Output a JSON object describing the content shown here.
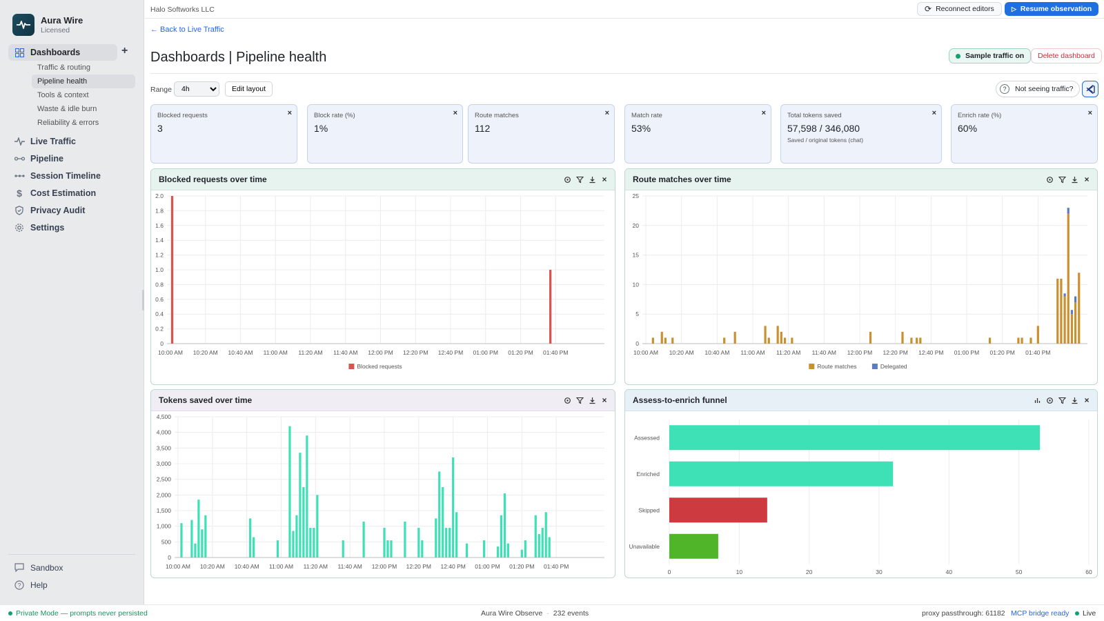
{
  "app": {
    "name": "Aura Wire",
    "license": "Licensed",
    "org": "Halo Softworks LLC"
  },
  "sidebar": {
    "dashboards_label": "Dashboards",
    "subitems": [
      "Traffic & routing",
      "Pipeline health",
      "Tools & context",
      "Waste & idle burn",
      "Reliability & errors"
    ],
    "active_subitem": "Pipeline health",
    "items": [
      {
        "label": "Live Traffic",
        "icon": "activity-icon"
      },
      {
        "label": "Pipeline",
        "icon": "pipeline-icon"
      },
      {
        "label": "Session Timeline",
        "icon": "timeline-icon"
      },
      {
        "label": "Cost Estimation",
        "icon": "dollar-icon"
      },
      {
        "label": "Privacy Audit",
        "icon": "shield-icon"
      },
      {
        "label": "Settings",
        "icon": "gear-icon"
      }
    ],
    "bottom": [
      {
        "label": "Sandbox",
        "icon": "chat-icon"
      },
      {
        "label": "Help",
        "icon": "help-icon"
      }
    ]
  },
  "topbar": {
    "reconnect_label": "Reconnect editors",
    "resume_label": "Resume observation"
  },
  "header": {
    "back_label": "← Back to Live Traffic",
    "title": "Dashboards | Pipeline health",
    "sample_label": "Sample traffic on",
    "delete_label": "Delete dashboard",
    "range_label": "Range",
    "range_value": "4h",
    "edit_label": "Edit layout",
    "not_seeing_label": "Not seeing traffic?"
  },
  "cards": [
    {
      "label": "Blocked requests",
      "value": "3",
      "sub": ""
    },
    {
      "label": "Block rate (%)",
      "value": "1%",
      "sub": ""
    },
    {
      "label": "Route matches",
      "value": "112",
      "sub": ""
    },
    {
      "label": "Match rate",
      "value": "53%",
      "sub": ""
    },
    {
      "label": "Total tokens saved",
      "value": "57,598 / 346,080",
      "sub": "Saved / original tokens (chat)"
    },
    {
      "label": "Enrich rate (%)",
      "value": "60%",
      "sub": ""
    }
  ],
  "panels": {
    "blocked": {
      "title": "Blocked requests over time"
    },
    "routes": {
      "title": "Route matches over time"
    },
    "tokens": {
      "title": "Tokens saved over time"
    },
    "funnel": {
      "title": "Assess-to-enrich funnel"
    }
  },
  "footer": {
    "private": "Private Mode — prompts never persisted",
    "product": "Aura Wire Observe",
    "events": "232 events",
    "proxy": "proxy passthrough: 61182",
    "mcp": "MCP bridge ready",
    "live": "Live"
  },
  "chart_data": [
    {
      "type": "bar",
      "title": "Blocked requests over time",
      "xlabel": "",
      "ylabel": "",
      "ylim": [
        0,
        2.0
      ],
      "yticks": [
        "0",
        "0.2",
        "0.4",
        "0.6",
        "0.8",
        "1.0",
        "1.2",
        "1.4",
        "1.6",
        "1.8",
        "2.0"
      ],
      "xticks": [
        "10:00 AM",
        "10:20 AM",
        "10:40 AM",
        "11:00 AM",
        "11:20 AM",
        "11:40 AM",
        "12:00 PM",
        "12:20 PM",
        "12:40 PM",
        "01:00 PM",
        "01:20 PM",
        "01:40 PM"
      ],
      "series": [
        {
          "name": "Blocked requests",
          "color": "#d9534f",
          "points": [
            {
              "t": 1,
              "v": 2
            },
            {
              "t": 217,
              "v": 1
            }
          ]
        }
      ],
      "legend": "bottom"
    },
    {
      "type": "bar",
      "title": "Route matches over time",
      "xlabel": "",
      "ylabel": "",
      "ylim": [
        0,
        25
      ],
      "yticks": [
        "0",
        "5",
        "10",
        "15",
        "20",
        "25"
      ],
      "xticks": [
        "10:00 AM",
        "10:20 AM",
        "10:40 AM",
        "11:00 AM",
        "11:20 AM",
        "11:40 AM",
        "12:00 PM",
        "12:20 PM",
        "12:40 PM",
        "01:00 PM",
        "01:20 PM",
        "01:40 PM"
      ],
      "stacked": true,
      "series": [
        {
          "name": "Route matches",
          "color": "#c9902f",
          "points": [
            {
              "t": 4,
              "v": 1
            },
            {
              "t": 9,
              "v": 2
            },
            {
              "t": 11,
              "v": 1
            },
            {
              "t": 15,
              "v": 1
            },
            {
              "t": 44,
              "v": 1
            },
            {
              "t": 50,
              "v": 2
            },
            {
              "t": 67,
              "v": 3
            },
            {
              "t": 69,
              "v": 1
            },
            {
              "t": 74,
              "v": 3
            },
            {
              "t": 76,
              "v": 2
            },
            {
              "t": 78,
              "v": 1
            },
            {
              "t": 82,
              "v": 1
            },
            {
              "t": 126,
              "v": 2
            },
            {
              "t": 144,
              "v": 2
            },
            {
              "t": 149,
              "v": 1
            },
            {
              "t": 152,
              "v": 1
            },
            {
              "t": 154,
              "v": 1
            },
            {
              "t": 193,
              "v": 1
            },
            {
              "t": 209,
              "v": 1
            },
            {
              "t": 211,
              "v": 1
            },
            {
              "t": 216,
              "v": 1
            },
            {
              "t": 220,
              "v": 3
            },
            {
              "t": 231,
              "v": 11
            },
            {
              "t": 233,
              "v": 11
            },
            {
              "t": 235,
              "v": 8
            },
            {
              "t": 237,
              "v": 22
            },
            {
              "t": 239,
              "v": 5
            },
            {
              "t": 241,
              "v": 7
            },
            {
              "t": 243,
              "v": 12
            }
          ]
        },
        {
          "name": "Delegated",
          "color": "#5b7cc4",
          "points": [
            {
              "t": 235,
              "v": 0.5
            },
            {
              "t": 237,
              "v": 1
            },
            {
              "t": 239,
              "v": 0.7
            },
            {
              "t": 241,
              "v": 1
            }
          ]
        }
      ],
      "legend": "bottom"
    },
    {
      "type": "bar",
      "title": "Tokens saved over time",
      "xlabel": "",
      "ylabel": "",
      "ylim": [
        0,
        4500
      ],
      "yticks": [
        "0",
        "500",
        "1,000",
        "1,500",
        "2,000",
        "2,500",
        "3,000",
        "3,500",
        "4,000",
        "4,500"
      ],
      "xticks": [
        "10:00 AM",
        "10:20 AM",
        "10:40 AM",
        "11:00 AM",
        "11:20 AM",
        "11:40 AM",
        "12:00 PM",
        "12:20 PM",
        "12:40 PM",
        "01:00 PM",
        "01:20 PM",
        "01:40 PM"
      ],
      "series": [
        {
          "name": "Tokens saved",
          "color": "#3ee0b5",
          "points": [
            {
              "t": 2,
              "v": 1100
            },
            {
              "t": 8,
              "v": 1200
            },
            {
              "t": 10,
              "v": 450
            },
            {
              "t": 12,
              "v": 1850
            },
            {
              "t": 14,
              "v": 900
            },
            {
              "t": 16,
              "v": 1350
            },
            {
              "t": 42,
              "v": 1250
            },
            {
              "t": 44,
              "v": 650
            },
            {
              "t": 58,
              "v": 550
            },
            {
              "t": 65,
              "v": 4200
            },
            {
              "t": 67,
              "v": 850
            },
            {
              "t": 69,
              "v": 1350
            },
            {
              "t": 71,
              "v": 3350
            },
            {
              "t": 73,
              "v": 2250
            },
            {
              "t": 75,
              "v": 3900
            },
            {
              "t": 77,
              "v": 950
            },
            {
              "t": 79,
              "v": 950
            },
            {
              "t": 81,
              "v": 2000
            },
            {
              "t": 96,
              "v": 550
            },
            {
              "t": 108,
              "v": 1150
            },
            {
              "t": 120,
              "v": 950
            },
            {
              "t": 122,
              "v": 550
            },
            {
              "t": 124,
              "v": 550
            },
            {
              "t": 132,
              "v": 1150
            },
            {
              "t": 140,
              "v": 950
            },
            {
              "t": 142,
              "v": 550
            },
            {
              "t": 150,
              "v": 1250
            },
            {
              "t": 152,
              "v": 2750
            },
            {
              "t": 154,
              "v": 2250
            },
            {
              "t": 156,
              "v": 950
            },
            {
              "t": 158,
              "v": 950
            },
            {
              "t": 160,
              "v": 3200
            },
            {
              "t": 162,
              "v": 1450
            },
            {
              "t": 168,
              "v": 450
            },
            {
              "t": 178,
              "v": 550
            },
            {
              "t": 186,
              "v": 350
            },
            {
              "t": 188,
              "v": 1350
            },
            {
              "t": 190,
              "v": 2050
            },
            {
              "t": 192,
              "v": 450
            },
            {
              "t": 200,
              "v": 250
            },
            {
              "t": 202,
              "v": 550
            },
            {
              "t": 208,
              "v": 1350
            },
            {
              "t": 210,
              "v": 750
            },
            {
              "t": 212,
              "v": 950
            },
            {
              "t": 214,
              "v": 1450
            },
            {
              "t": 216,
              "v": 650
            }
          ]
        }
      ],
      "legend": "bottom"
    },
    {
      "type": "bar",
      "orientation": "horizontal",
      "title": "Assess-to-enrich funnel",
      "xlim": [
        0,
        60
      ],
      "xticks": [
        "0",
        "10",
        "20",
        "30",
        "40",
        "50",
        "60"
      ],
      "categories": [
        "Assessed",
        "Enriched",
        "Skipped",
        "Unavailable"
      ],
      "values": [
        53,
        32,
        14,
        7
      ],
      "colors": [
        "#3ee0b5",
        "#3ee0b5",
        "#cd3a3f",
        "#51b52a"
      ]
    }
  ]
}
